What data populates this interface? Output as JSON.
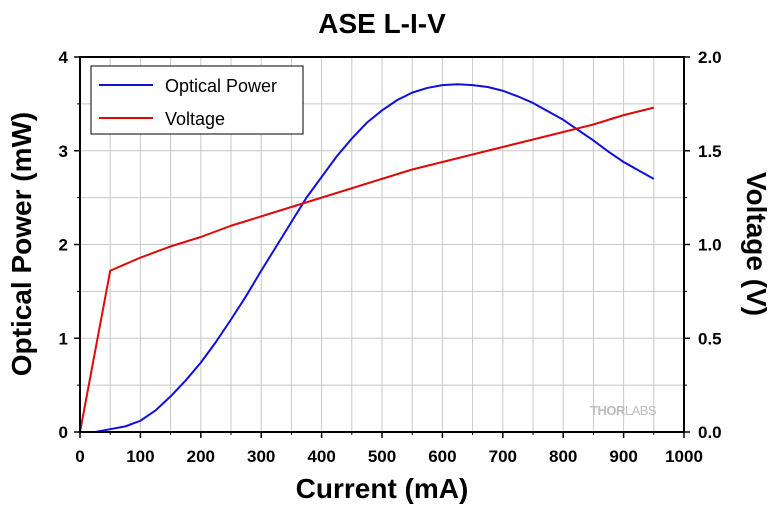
{
  "chart_data": {
    "type": "line",
    "title": "ASE L-I-V",
    "xlabel": "Current (mA)",
    "ylabel": "Optical Power (mW)",
    "y2label": "Voltage (V)",
    "xlim": [
      0,
      1000
    ],
    "ylim": [
      0,
      4
    ],
    "y2lim": [
      0,
      2.0
    ],
    "x_ticks": [
      0,
      100,
      200,
      300,
      400,
      500,
      600,
      700,
      800,
      900,
      1000
    ],
    "x_tick_labels": [
      "0",
      "100",
      "200",
      "300",
      "400",
      "500",
      "600",
      "700",
      "800",
      "900",
      "1000"
    ],
    "y_ticks": [
      0,
      1,
      2,
      3,
      4
    ],
    "y_tick_labels": [
      "0",
      "1",
      "2",
      "3",
      "4"
    ],
    "y2_ticks": [
      0,
      0.5,
      1.0,
      1.5,
      2.0
    ],
    "y2_tick_labels": [
      "0.0",
      "0.5",
      "1.0",
      "1.5",
      "2.0"
    ],
    "grid": true,
    "legend_position": "top-left",
    "series": [
      {
        "name": "Optical Power",
        "axis": "left",
        "color": "#1010d8",
        "x": [
          0,
          25,
          50,
          75,
          100,
          125,
          150,
          175,
          200,
          225,
          250,
          275,
          300,
          325,
          350,
          375,
          400,
          425,
          450,
          475,
          500,
          525,
          550,
          575,
          600,
          625,
          650,
          675,
          700,
          725,
          750,
          775,
          800,
          825,
          850,
          875,
          900,
          925,
          950
        ],
        "values": [
          0.0,
          0.0,
          0.03,
          0.06,
          0.12,
          0.23,
          0.38,
          0.55,
          0.74,
          0.96,
          1.2,
          1.45,
          1.72,
          1.98,
          2.24,
          2.5,
          2.72,
          2.94,
          3.13,
          3.3,
          3.43,
          3.54,
          3.62,
          3.67,
          3.7,
          3.71,
          3.7,
          3.68,
          3.64,
          3.58,
          3.51,
          3.42,
          3.33,
          3.22,
          3.11,
          2.99,
          2.88,
          2.79,
          2.7
        ]
      },
      {
        "name": "Voltage",
        "axis": "right",
        "color": "#dd0a0a",
        "x": [
          0,
          50,
          100,
          150,
          200,
          250,
          300,
          350,
          400,
          450,
          500,
          550,
          600,
          650,
          700,
          750,
          800,
          850,
          900,
          950
        ],
        "values": [
          0.0,
          0.86,
          0.93,
          0.99,
          1.04,
          1.1,
          1.15,
          1.2,
          1.25,
          1.3,
          1.35,
          1.4,
          1.44,
          1.48,
          1.52,
          1.56,
          1.6,
          1.64,
          1.69,
          1.73
        ]
      }
    ]
  },
  "watermark": {
    "text_thor": "THOR",
    "text_labs": "LABS"
  }
}
